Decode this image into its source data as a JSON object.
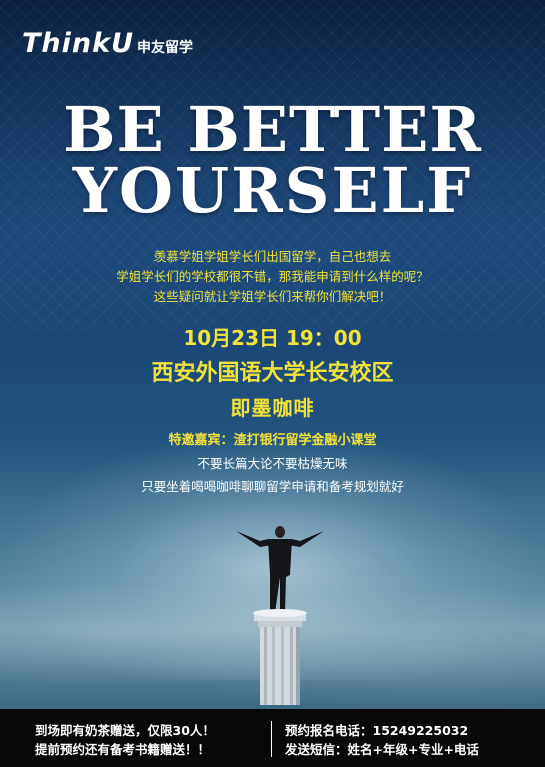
{
  "logo": {
    "mark": "ThinkU",
    "cn": "申友留学"
  },
  "headline": {
    "line1": "BE BETTER",
    "line2": "YOURSELF"
  },
  "intro": [
    "羡慕学姐学姐学长们出国留学，自己也想去",
    "学姐学长们的学校都很不错，那我能申请到什么样的呢？",
    "这些疑问就让学姐学长们来帮你们解决吧！"
  ],
  "event": {
    "datetime": "10月23日 19：00",
    "venue": "西安外国语大学长安校区",
    "place": "即墨咖啡",
    "guest": "特邀嘉宾：渣打银行留学金融小课堂"
  },
  "desc": [
    "不要长篇大论不要枯燥无味",
    "只要坐着喝喝咖啡聊聊留学申请和备考规划就好"
  ],
  "footer": {
    "left": [
      "到场即有奶茶赠送，仅限30人！",
      "提前预约还有备考书籍赠送！！"
    ],
    "right": [
      "预约报名电话：15249225032",
      "发送短信：姓名+年级+专业+电话"
    ]
  },
  "colors": {
    "accent": "#f2e23a",
    "background": "#1d4a7d",
    "footer": "#080808"
  }
}
